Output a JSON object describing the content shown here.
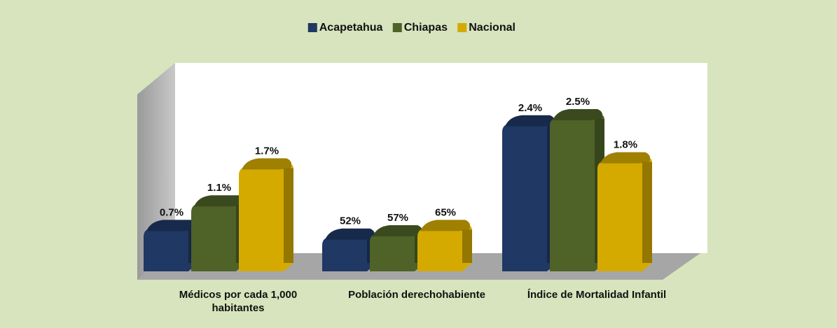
{
  "chart_data": {
    "type": "bar3d",
    "categories": [
      "Médicos por cada 1,000 habitantes",
      "Población derechohabiente",
      "Índice de Mortalidad Infantil"
    ],
    "series": [
      {
        "name": "Acapetahua",
        "color": "#1f3864",
        "values": [
          0.7,
          52,
          2.4
        ],
        "value_labels": [
          "0.7%",
          "52%",
          "2.4%"
        ]
      },
      {
        "name": "Chiapas",
        "color": "#4f6228",
        "values": [
          1.1,
          57,
          2.5
        ],
        "value_labels": [
          "1.1%",
          "57%",
          "2.5%"
        ]
      },
      {
        "name": "Nacional",
        "color": "#d4aa00",
        "values": [
          1.7,
          65,
          1.8
        ],
        "value_labels": [
          "1.7%",
          "65%",
          "1.8%"
        ]
      }
    ],
    "legend": "top"
  }
}
